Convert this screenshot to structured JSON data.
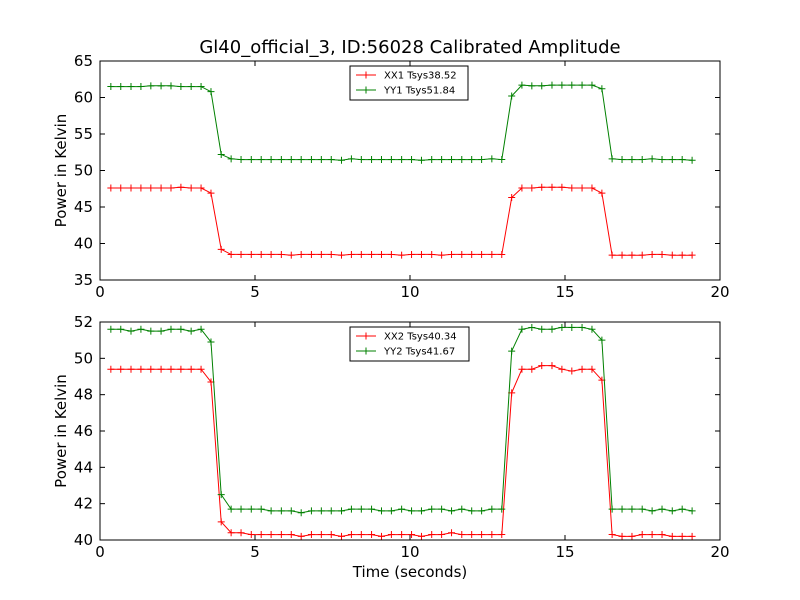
{
  "chart_data": [
    {
      "type": "line",
      "title": "Gl40_official_3, ID:56028 Calibrated Amplitude",
      "xlabel": "",
      "ylabel": "Power in Kelvin",
      "xlim": [
        0,
        20
      ],
      "ylim": [
        35,
        65
      ],
      "xticks": [
        0,
        5,
        10,
        15,
        20
      ],
      "yticks": [
        35,
        40,
        45,
        50,
        55,
        60,
        65
      ],
      "legend_position": "top-center",
      "x": [
        0.35,
        0.67,
        1.0,
        1.32,
        1.64,
        1.97,
        2.29,
        2.61,
        2.94,
        3.26,
        3.58,
        3.91,
        4.23,
        4.55,
        4.88,
        5.2,
        5.52,
        5.85,
        6.17,
        6.49,
        6.82,
        7.14,
        7.46,
        7.79,
        8.11,
        8.43,
        8.76,
        9.08,
        9.4,
        9.73,
        10.05,
        10.37,
        10.7,
        11.02,
        11.34,
        11.67,
        11.99,
        12.31,
        12.64,
        12.96,
        13.28,
        13.61,
        13.93,
        14.25,
        14.58,
        14.9,
        15.22,
        15.55,
        15.87,
        16.19,
        16.52,
        16.84,
        17.16,
        17.49,
        17.81,
        18.13,
        18.46,
        18.78,
        19.1
      ],
      "series": [
        {
          "name": "XX1 Tsys38.52",
          "color": "#ff0000",
          "values": [
            47.6,
            47.6,
            47.6,
            47.6,
            47.6,
            47.6,
            47.6,
            47.7,
            47.6,
            47.6,
            46.9,
            39.2,
            38.5,
            38.5,
            38.5,
            38.5,
            38.5,
            38.5,
            38.4,
            38.5,
            38.5,
            38.5,
            38.5,
            38.4,
            38.5,
            38.5,
            38.5,
            38.5,
            38.5,
            38.4,
            38.5,
            38.5,
            38.5,
            38.4,
            38.5,
            38.5,
            38.5,
            38.5,
            38.5,
            38.5,
            46.3,
            47.6,
            47.6,
            47.7,
            47.7,
            47.7,
            47.6,
            47.6,
            47.6,
            46.9,
            38.4,
            38.4,
            38.4,
            38.4,
            38.5,
            38.5,
            38.4,
            38.4,
            38.4
          ]
        },
        {
          "name": "YY1 Tsys51.84",
          "color": "#008000",
          "values": [
            61.5,
            61.5,
            61.5,
            61.5,
            61.6,
            61.6,
            61.6,
            61.5,
            61.5,
            61.5,
            60.8,
            52.2,
            51.6,
            51.5,
            51.5,
            51.5,
            51.5,
            51.5,
            51.5,
            51.5,
            51.5,
            51.5,
            51.5,
            51.4,
            51.6,
            51.5,
            51.5,
            51.5,
            51.5,
            51.5,
            51.5,
            51.4,
            51.5,
            51.5,
            51.5,
            51.5,
            51.5,
            51.5,
            51.6,
            51.5,
            60.2,
            61.7,
            61.6,
            61.6,
            61.7,
            61.7,
            61.7,
            61.7,
            61.7,
            61.2,
            51.6,
            51.5,
            51.5,
            51.5,
            51.6,
            51.5,
            51.5,
            51.5,
            51.4
          ]
        }
      ]
    },
    {
      "type": "line",
      "title": "",
      "xlabel": "Time (seconds)",
      "ylabel": "Power in Kelvin",
      "xlim": [
        0,
        20
      ],
      "ylim": [
        40,
        52
      ],
      "xticks": [
        0,
        5,
        10,
        15,
        20
      ],
      "yticks": [
        40,
        42,
        44,
        46,
        48,
        50,
        52
      ],
      "legend_position": "top-center",
      "x": [
        0.35,
        0.67,
        1.0,
        1.32,
        1.64,
        1.97,
        2.29,
        2.61,
        2.94,
        3.26,
        3.58,
        3.91,
        4.23,
        4.55,
        4.88,
        5.2,
        5.52,
        5.85,
        6.17,
        6.49,
        6.82,
        7.14,
        7.46,
        7.79,
        8.11,
        8.43,
        8.76,
        9.08,
        9.4,
        9.73,
        10.05,
        10.37,
        10.7,
        11.02,
        11.34,
        11.67,
        11.99,
        12.31,
        12.64,
        12.96,
        13.28,
        13.61,
        13.93,
        14.25,
        14.58,
        14.9,
        15.22,
        15.55,
        15.87,
        16.19,
        16.52,
        16.84,
        17.16,
        17.49,
        17.81,
        18.13,
        18.46,
        18.78,
        19.1
      ],
      "series": [
        {
          "name": "XX2 Tsys40.34",
          "color": "#ff0000",
          "values": [
            49.4,
            49.4,
            49.4,
            49.4,
            49.4,
            49.4,
            49.4,
            49.4,
            49.4,
            49.4,
            48.7,
            41.0,
            40.4,
            40.4,
            40.3,
            40.3,
            40.3,
            40.3,
            40.3,
            40.2,
            40.3,
            40.3,
            40.3,
            40.2,
            40.3,
            40.3,
            40.3,
            40.2,
            40.3,
            40.3,
            40.3,
            40.2,
            40.3,
            40.3,
            40.4,
            40.3,
            40.3,
            40.3,
            40.3,
            40.3,
            48.1,
            49.4,
            49.4,
            49.6,
            49.6,
            49.4,
            49.3,
            49.4,
            49.4,
            48.8,
            40.3,
            40.2,
            40.2,
            40.3,
            40.3,
            40.3,
            40.2,
            40.2,
            40.2
          ]
        },
        {
          "name": "YY2 Tsys41.67",
          "color": "#008000",
          "values": [
            51.6,
            51.6,
            51.5,
            51.6,
            51.5,
            51.5,
            51.6,
            51.6,
            51.5,
            51.6,
            50.9,
            42.5,
            41.7,
            41.7,
            41.7,
            41.7,
            41.6,
            41.6,
            41.6,
            41.5,
            41.6,
            41.6,
            41.6,
            41.6,
            41.7,
            41.7,
            41.7,
            41.6,
            41.6,
            41.7,
            41.6,
            41.6,
            41.7,
            41.7,
            41.6,
            41.7,
            41.6,
            41.6,
            41.7,
            41.7,
            50.4,
            51.6,
            51.7,
            51.6,
            51.6,
            51.7,
            51.7,
            51.7,
            51.6,
            51.0,
            41.7,
            41.7,
            41.7,
            41.7,
            41.6,
            41.7,
            41.6,
            41.7,
            41.6
          ]
        }
      ]
    }
  ]
}
